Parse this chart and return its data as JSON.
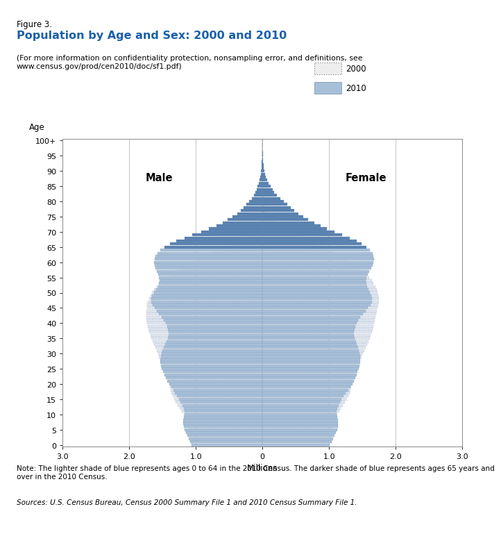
{
  "title_line1": "Figure 3.",
  "title_line2": "Population by Age and Sex: 2000 and 2010",
  "subtitle": "(For more information on confidentiality protection, nonsampling error, and definitions, see\nwww.census.gov/prod/cen2010/doc/sf1.pdf)",
  "note": "Note: The lighter shade of blue represents ages 0 to 64 in the 2010 Census. The darker shade of blue represents ages 65 years and\nover in the 2010 Census.",
  "sources": "Sources: U.S. Census Bureau, Census 2000 Summary File 1 and 2010 Census Summary File 1.",
  "xlabel": "Millions",
  "ylabel": "Age",
  "xlim": [
    -3.0,
    3.0
  ],
  "xticks": [
    -3.0,
    -2.0,
    -1.0,
    0.0,
    1.0,
    2.0,
    3.0
  ],
  "xticklabels": [
    "3.0",
    "2.0",
    "1.0",
    "0",
    "1.0",
    "2.0",
    "3.0"
  ],
  "color_2010_young": "#a8bfd8",
  "color_2010_old": "#5a82b0",
  "color_2000_fill": "#dce4f0",
  "color_2000_edge": "#aaaaaa",
  "male_label": "Male",
  "female_label": "Female",
  "age_cutoff_65": 65,
  "background_color": "#ffffff",
  "male_2010": [
    1.06,
    1.09,
    1.11,
    1.13,
    1.15,
    1.17,
    1.18,
    1.19,
    1.19,
    1.18,
    1.17,
    1.17,
    1.18,
    1.2,
    1.23,
    1.25,
    1.28,
    1.31,
    1.34,
    1.37,
    1.4,
    1.43,
    1.45,
    1.47,
    1.49,
    1.51,
    1.52,
    1.53,
    1.53,
    1.52,
    1.51,
    1.5,
    1.48,
    1.46,
    1.44,
    1.42,
    1.41,
    1.41,
    1.42,
    1.43,
    1.45,
    1.48,
    1.51,
    1.55,
    1.59,
    1.62,
    1.65,
    1.67,
    1.67,
    1.66,
    1.63,
    1.6,
    1.57,
    1.55,
    1.54,
    1.55,
    1.57,
    1.59,
    1.61,
    1.62,
    1.63,
    1.62,
    1.61,
    1.58,
    1.53,
    1.47,
    1.39,
    1.29,
    1.17,
    1.05,
    0.92,
    0.8,
    0.69,
    0.6,
    0.52,
    0.45,
    0.38,
    0.33,
    0.28,
    0.24,
    0.2,
    0.16,
    0.13,
    0.11,
    0.09,
    0.07,
    0.05,
    0.04,
    0.03,
    0.02,
    0.02,
    0.01,
    0.01,
    0.01,
    0.005,
    0.003,
    0.002,
    0.001,
    0.001,
    0.0005,
    0.0003
  ],
  "female_2010": [
    1.01,
    1.04,
    1.06,
    1.08,
    1.1,
    1.12,
    1.13,
    1.13,
    1.13,
    1.12,
    1.11,
    1.11,
    1.12,
    1.14,
    1.17,
    1.19,
    1.22,
    1.25,
    1.29,
    1.32,
    1.35,
    1.37,
    1.39,
    1.41,
    1.43,
    1.45,
    1.46,
    1.47,
    1.47,
    1.47,
    1.46,
    1.45,
    1.44,
    1.42,
    1.4,
    1.38,
    1.37,
    1.37,
    1.38,
    1.39,
    1.41,
    1.44,
    1.47,
    1.51,
    1.55,
    1.58,
    1.62,
    1.64,
    1.64,
    1.63,
    1.61,
    1.59,
    1.57,
    1.56,
    1.55,
    1.56,
    1.58,
    1.6,
    1.63,
    1.65,
    1.67,
    1.68,
    1.67,
    1.65,
    1.61,
    1.56,
    1.49,
    1.41,
    1.31,
    1.2,
    1.08,
    0.97,
    0.87,
    0.78,
    0.69,
    0.61,
    0.54,
    0.48,
    0.42,
    0.37,
    0.32,
    0.27,
    0.22,
    0.18,
    0.15,
    0.12,
    0.09,
    0.07,
    0.05,
    0.04,
    0.03,
    0.02,
    0.02,
    0.01,
    0.01,
    0.007,
    0.005,
    0.003,
    0.002,
    0.001,
    0.001
  ],
  "male_2000": [
    1.06,
    1.09,
    1.09,
    1.09,
    1.1,
    1.1,
    1.11,
    1.12,
    1.14,
    1.16,
    1.18,
    1.21,
    1.24,
    1.27,
    1.3,
    1.33,
    1.35,
    1.37,
    1.38,
    1.39,
    1.4,
    1.41,
    1.43,
    1.44,
    1.46,
    1.47,
    1.49,
    1.51,
    1.53,
    1.55,
    1.57,
    1.59,
    1.61,
    1.63,
    1.65,
    1.67,
    1.68,
    1.7,
    1.71,
    1.72,
    1.73,
    1.74,
    1.74,
    1.74,
    1.74,
    1.73,
    1.73,
    1.72,
    1.7,
    1.68,
    1.66,
    1.63,
    1.59,
    1.55,
    1.5,
    1.44,
    1.38,
    1.31,
    1.23,
    1.15,
    1.06,
    0.97,
    0.87,
    0.77,
    0.67,
    0.57,
    0.48,
    0.39,
    0.32,
    0.25,
    0.19,
    0.15,
    0.11,
    0.08,
    0.06,
    0.05,
    0.03,
    0.02,
    0.02,
    0.01,
    0.01,
    0.007,
    0.005,
    0.003,
    0.002,
    0.002,
    0.001,
    0.001,
    0.0005,
    0.0003,
    0.0002,
    0.0001,
    7e-05,
    5e-05,
    3e-05,
    2e-05,
    1e-05,
    7e-06,
    5e-06,
    3e-06,
    2e-06
  ],
  "female_2000": [
    1.01,
    1.04,
    1.04,
    1.04,
    1.05,
    1.05,
    1.06,
    1.07,
    1.08,
    1.1,
    1.12,
    1.15,
    1.18,
    1.21,
    1.24,
    1.27,
    1.29,
    1.31,
    1.32,
    1.33,
    1.34,
    1.35,
    1.36,
    1.38,
    1.39,
    1.41,
    1.43,
    1.45,
    1.47,
    1.49,
    1.51,
    1.53,
    1.55,
    1.57,
    1.59,
    1.61,
    1.62,
    1.64,
    1.65,
    1.67,
    1.68,
    1.69,
    1.7,
    1.71,
    1.72,
    1.73,
    1.74,
    1.75,
    1.75,
    1.74,
    1.73,
    1.72,
    1.7,
    1.67,
    1.64,
    1.6,
    1.55,
    1.5,
    1.44,
    1.38,
    1.31,
    1.24,
    1.16,
    1.08,
    0.99,
    0.89,
    0.8,
    0.7,
    0.61,
    0.52,
    0.43,
    0.36,
    0.29,
    0.24,
    0.19,
    0.15,
    0.11,
    0.08,
    0.06,
    0.05,
    0.04,
    0.03,
    0.02,
    0.01,
    0.01,
    0.008,
    0.006,
    0.004,
    0.003,
    0.002,
    0.001,
    0.001,
    0.0007,
    0.0005,
    0.0003,
    0.0002,
    0.0001,
    8e-05,
    5e-05,
    3e-05,
    3e-05
  ]
}
